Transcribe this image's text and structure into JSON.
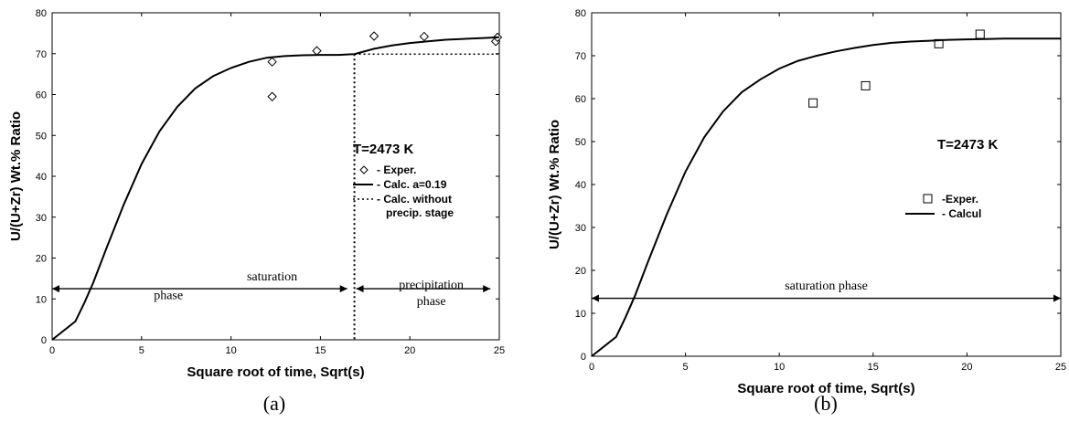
{
  "chart_data": [
    {
      "type": "line",
      "panel_label": "(a)",
      "xlabel": "Square root of time, Sqrt(s)",
      "ylabel": "U/(U+Zr) Wt.% Ratio",
      "xlim": [
        0,
        25
      ],
      "ylim": [
        0,
        80
      ],
      "xticks": [
        "0",
        "5",
        "10",
        "15",
        "20",
        "25"
      ],
      "yticks": [
        "0",
        "10",
        "20",
        "30",
        "40",
        "50",
        "60",
        "70",
        "80"
      ],
      "temperature_label": "T=2473 K",
      "series": [
        {
          "name": "- Exper.",
          "style": "diamond-markers",
          "x": [
            12.3,
            12.3,
            14.8,
            18.0,
            20.8,
            24.8,
            24.9
          ],
          "y": [
            59.5,
            68.0,
            70.7,
            74.3,
            74.2,
            73.0,
            74.0
          ]
        },
        {
          "name": "- Calc. a=0.19",
          "style": "solid",
          "x": [
            0,
            1.3,
            1.8,
            2.3,
            3,
            4,
            5,
            6,
            7,
            8,
            9,
            10,
            11,
            12,
            13,
            14,
            15,
            16,
            16.9,
            18,
            19,
            20,
            21,
            22,
            23,
            24,
            25
          ],
          "y": [
            0,
            4.5,
            9,
            14,
            22,
            33,
            43,
            51,
            57,
            61.5,
            64.5,
            66.5,
            68,
            69,
            69.4,
            69.6,
            69.7,
            69.7,
            69.9,
            71.2,
            72,
            72.6,
            73,
            73.4,
            73.6,
            73.8,
            74
          ]
        },
        {
          "name": "- Calc. without precip. stage",
          "style": "dotted",
          "x": [
            16.9,
            25
          ],
          "y": [
            69.9,
            69.9
          ]
        }
      ],
      "annotations": [
        {
          "text": "saturation",
          "x": 12.3,
          "y": 14.5
        },
        {
          "text": "phase",
          "x": 6.5,
          "y": 10
        },
        {
          "text": "precipitation",
          "x": 21.2,
          "y": 12.5
        },
        {
          "text": "phase",
          "x": 21.2,
          "y": 8.5
        }
      ],
      "arrows": [
        {
          "x1": 0,
          "x2": 16.5,
          "y": 12.5
        },
        {
          "x1": 17.0,
          "x2": 24.5,
          "y": 12.5
        }
      ],
      "vertical_line_x": 16.9
    },
    {
      "type": "line",
      "panel_label": "(b)",
      "xlabel": "Square root of time, Sqrt(s)",
      "ylabel": "U/(U+Zr) Wt.% Ratio",
      "xlim": [
        0,
        25
      ],
      "ylim": [
        0,
        80
      ],
      "xticks": [
        "0",
        "5",
        "10",
        "15",
        "20",
        "25"
      ],
      "yticks": [
        "0",
        "10",
        "20",
        "30",
        "40",
        "50",
        "60",
        "70",
        "80"
      ],
      "temperature_label": "T=2473 K",
      "series": [
        {
          "name": "-Exper.",
          "style": "square-markers",
          "x": [
            11.8,
            14.6,
            18.5,
            20.7
          ],
          "y": [
            59.0,
            63.0,
            72.8,
            75.0
          ]
        },
        {
          "name": "- Calcul",
          "style": "solid",
          "x": [
            0,
            1.3,
            1.8,
            2.3,
            3,
            4,
            5,
            6,
            7,
            8,
            9,
            10,
            11,
            12,
            13,
            14,
            15,
            16,
            17,
            18,
            19,
            20,
            21,
            22,
            23,
            24,
            25
          ],
          "y": [
            0,
            4.5,
            9,
            14,
            22,
            33,
            43,
            51,
            57,
            61.5,
            64.5,
            67,
            68.8,
            70,
            71,
            71.8,
            72.5,
            73,
            73.3,
            73.5,
            73.7,
            73.8,
            73.9,
            74,
            74,
            74,
            74
          ]
        }
      ],
      "annotations": [
        {
          "text": "saturation phase",
          "x": 12.5,
          "y": 15.5
        }
      ],
      "arrows": [
        {
          "x1": 0,
          "x2": 25,
          "y": 13.5
        }
      ]
    }
  ]
}
